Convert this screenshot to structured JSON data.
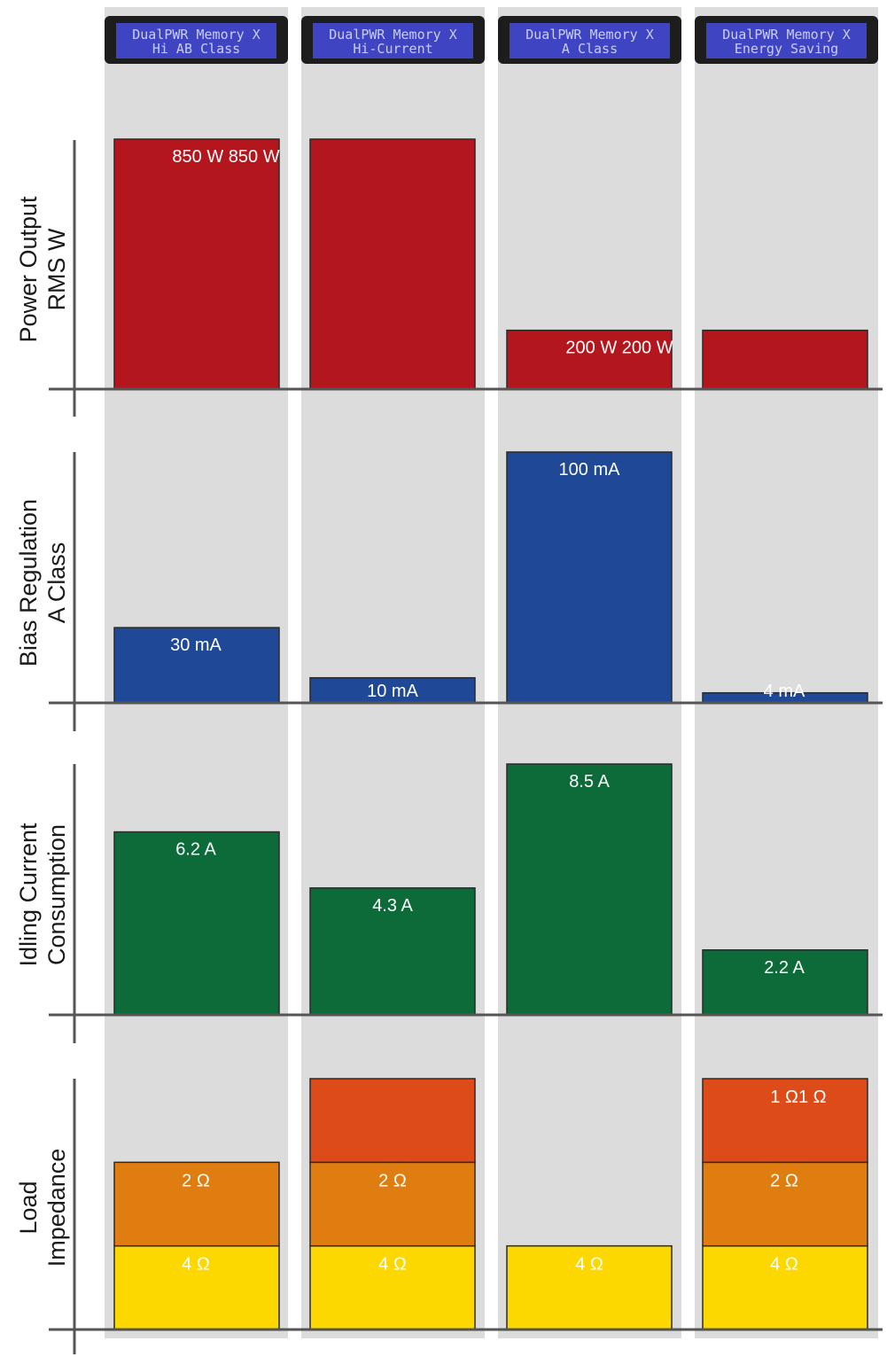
{
  "chart_data": {
    "type": "bar",
    "categories": [
      [
        "DualPWR Memory X",
        "Hi AB Class"
      ],
      [
        "DualPWR Memory X",
        "Hi-Current"
      ],
      [
        "DualPWR Memory X",
        "A Class"
      ],
      [
        "DualPWR Memory X",
        "Energy Saving"
      ]
    ],
    "colors": {
      "column_bg": "#dcdcdc",
      "lcd_bg": "#1d1d1d",
      "lcd_screen": "#3f44c2",
      "lcd_text": "#c9cdf5",
      "axis": "#555555",
      "power": "#b3161c",
      "bias": "#1f4896",
      "idle": "#0d6b3a",
      "imp_1ohm": "#dd4b18",
      "imp_2ohm": "#e07d10",
      "imp_4ohm": "#fcd800"
    },
    "panels": [
      {
        "ylabel": [
          "Power Output",
          "RMS W"
        ],
        "color_key": "power",
        "values": [
          850,
          850,
          200,
          200
        ],
        "labels": [
          "850 W 850 W",
          "",
          "200 W 200 W",
          ""
        ]
      },
      {
        "ylabel": [
          "Bias Regulation",
          "A Class"
        ],
        "color_key": "bias",
        "values": [
          30,
          10,
          100,
          4
        ],
        "labels": [
          "30 mA",
          "10 mA",
          "100 mA",
          "4 mA"
        ]
      },
      {
        "ylabel": [
          "Idling Current",
          "Consumption"
        ],
        "color_key": "idle",
        "values": [
          6.2,
          4.3,
          8.5,
          2.2
        ],
        "labels": [
          "6.2 A",
          "4.3 A",
          "8.5 A",
          "2.2 A"
        ]
      },
      {
        "ylabel": [
          "Load",
          "Impedance"
        ],
        "type": "stacked",
        "segments": [
          {
            "name": "4 Ω",
            "color_key": "imp_4ohm",
            "present": [
              true,
              true,
              true,
              true
            ],
            "labels": [
              "4 Ω",
              "4 Ω",
              "4 Ω",
              "4 Ω"
            ]
          },
          {
            "name": "2 Ω",
            "color_key": "imp_2ohm",
            "present": [
              true,
              true,
              false,
              true
            ],
            "labels": [
              "2 Ω",
              "2 Ω",
              "",
              "2 Ω"
            ]
          },
          {
            "name": "1 Ω",
            "color_key": "imp_1ohm",
            "present": [
              false,
              true,
              false,
              true
            ],
            "labels": [
              "",
              "",
              "",
              "1 Ω1 Ω"
            ]
          }
        ]
      }
    ]
  }
}
